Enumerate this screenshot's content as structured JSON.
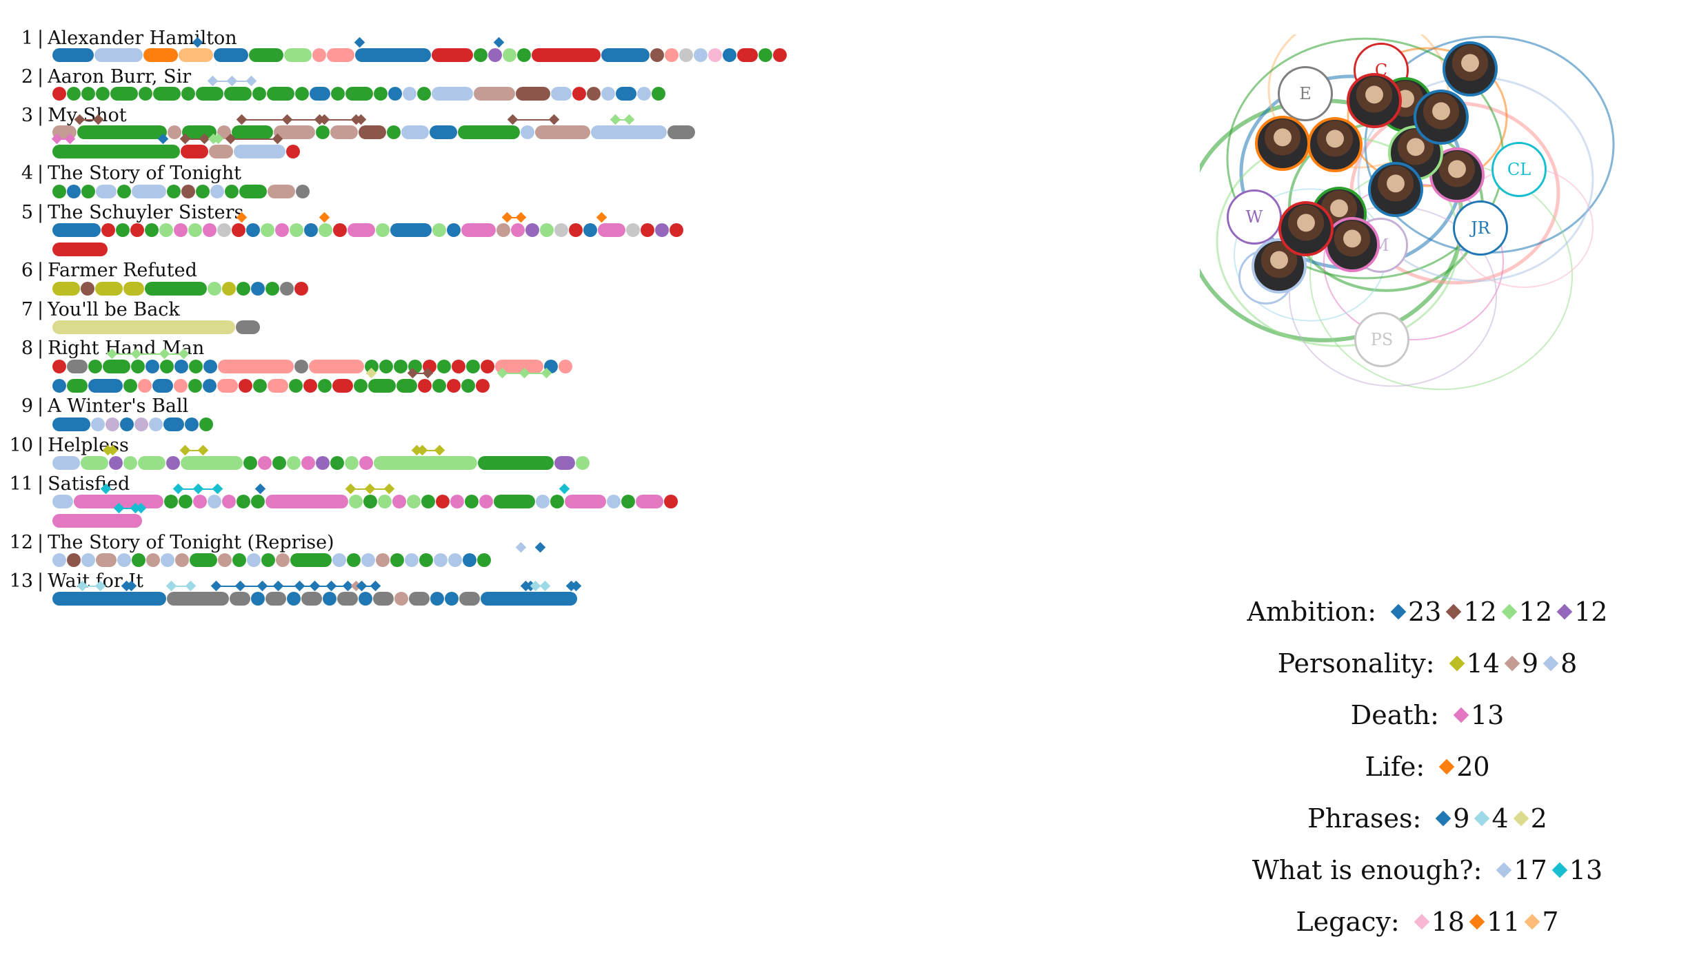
{
  "songs": [
    {
      "num": "1",
      "title": "Alexander Hamilton"
    },
    {
      "num": "2",
      "title": "Aaron Burr, Sir"
    },
    {
      "num": "3",
      "title": "My Shot"
    },
    {
      "num": "4",
      "title": "The Story of Tonight"
    },
    {
      "num": "5",
      "title": "The Schuyler Sisters"
    },
    {
      "num": "6",
      "title": "Farmer Refuted"
    },
    {
      "num": "7",
      "title": "You'll be Back"
    },
    {
      "num": "8",
      "title": "Right Hand Man"
    },
    {
      "num": "9",
      "title": "A Winter's Ball"
    },
    {
      "num": "10",
      "title": "Helpless"
    },
    {
      "num": "11",
      "title": "Satisfied"
    },
    {
      "num": "12",
      "title": "The Story of Tonight (Reprise)"
    },
    {
      "num": "13",
      "title": "Wait for It"
    }
  ],
  "nodes": [
    {
      "label": "C",
      "color": "#d62728"
    },
    {
      "label": "E",
      "color": "#7f7f7f"
    },
    {
      "label": "CL",
      "color": "#17becf"
    },
    {
      "label": "W",
      "color": "#9467bd"
    },
    {
      "label": "JR",
      "color": "#1f77b4"
    },
    {
      "label": "M",
      "color": "#c5b0d5"
    },
    {
      "label": "GE",
      "color": "#aec7e8"
    },
    {
      "label": "PS",
      "color": "#c7c7c7"
    }
  ],
  "photo_nodes": [
    "hamilton-photo",
    "angelica-photo",
    "washington-photo",
    "burr-photo",
    "mulligan-photo",
    "lafayette-photo",
    "laurens-photo",
    "jefferson-photo",
    "peggy-photo",
    "eliza-photo",
    "maria-photo",
    "king-george-photo",
    "madison-photo"
  ],
  "legend": [
    {
      "category": "Ambition:",
      "items": [
        {
          "color": "#1f77b4",
          "count": "23"
        },
        {
          "color": "#8c564b",
          "count": "12"
        },
        {
          "color": "#98df8a",
          "count": "12"
        },
        {
          "color": "#9467bd",
          "count": "12"
        }
      ]
    },
    {
      "category": "Personality:",
      "items": [
        {
          "color": "#bcbd22",
          "count": "14"
        },
        {
          "color": "#c49c94",
          "count": "9"
        },
        {
          "color": "#aec7e8",
          "count": "8"
        }
      ]
    },
    {
      "category": "Death:",
      "items": [
        {
          "color": "#e377c2",
          "count": "13"
        }
      ]
    },
    {
      "category": "Life:",
      "items": [
        {
          "color": "#ff7f0e",
          "count": "20"
        }
      ]
    },
    {
      "category": "Phrases:",
      "items": [
        {
          "color": "#1f77b4",
          "count": "9"
        },
        {
          "color": "#9edae5",
          "count": "4"
        },
        {
          "color": "#dbdb8d",
          "count": "2"
        }
      ]
    },
    {
      "category": "What is enough?:",
      "items": [
        {
          "color": "#aec7e8",
          "count": "17"
        },
        {
          "color": "#17becf",
          "count": "13"
        }
      ]
    },
    {
      "category": "Legacy:",
      "items": [
        {
          "color": "#f7b6d2",
          "count": "18"
        },
        {
          "color": "#ff7f0e",
          "count": "11"
        },
        {
          "color": "#ffbb78",
          "count": "7"
        }
      ]
    }
  ]
}
